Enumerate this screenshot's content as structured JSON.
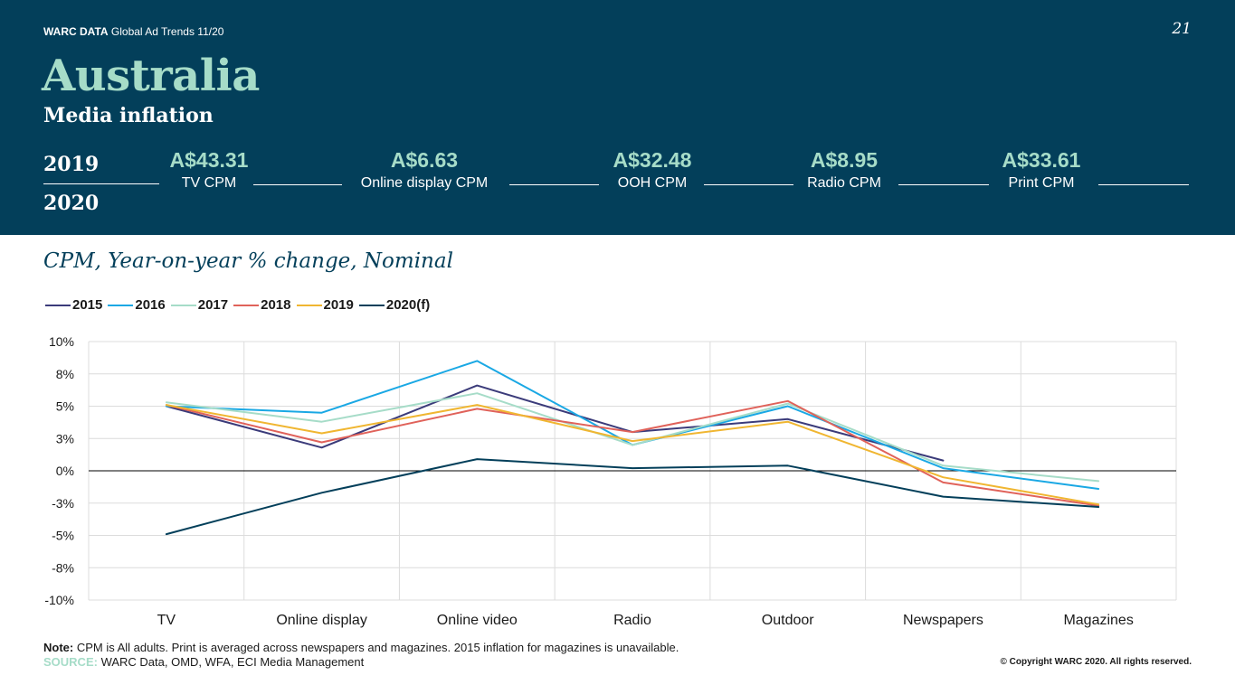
{
  "header": {
    "brand": "WARC DATA",
    "report": "Global Ad Trends 11/20",
    "page_number": "21",
    "country": "Australia",
    "section": "Media inflation",
    "year_top": "2019",
    "year_bottom": "2020"
  },
  "kpis": [
    {
      "value": "A$43.31",
      "label": "TV CPM"
    },
    {
      "value": "A$6.63",
      "label": "Online display CPM"
    },
    {
      "value": "A$32.48",
      "label": "OOH CPM"
    },
    {
      "value": "A$8.95",
      "label": "Radio CPM"
    },
    {
      "value": "A$33.61",
      "label": "Print CPM"
    }
  ],
  "chart_data": {
    "type": "line",
    "title": "CPM, Year-on-year % change, Nominal",
    "xlabel": "",
    "ylabel": "",
    "categories": [
      "TV",
      "Online display",
      "Online video",
      "Radio",
      "Outdoor",
      "Newspapers",
      "Magazines"
    ],
    "y_ticks": [
      "10%",
      "8%",
      "5%",
      "3%",
      "0%",
      "-3%",
      "-5%",
      "-8%",
      "-10%"
    ],
    "ylim": [
      -10,
      10
    ],
    "grid": true,
    "legend_position": "top-left",
    "zero_line": true,
    "series": [
      {
        "name": "2015",
        "color": "#3b3b7a",
        "values": [
          5.0,
          1.8,
          6.6,
          3.0,
          4.0,
          0.8,
          null
        ]
      },
      {
        "name": "2016",
        "color": "#1aa8e4",
        "values": [
          5.0,
          4.5,
          8.5,
          2.0,
          5.0,
          0.2,
          -1.4
        ]
      },
      {
        "name": "2017",
        "color": "#a6dcc8",
        "values": [
          5.3,
          3.8,
          6.0,
          2.0,
          5.2,
          0.4,
          -0.8
        ]
      },
      {
        "name": "2018",
        "color": "#e0625a",
        "values": [
          5.1,
          2.2,
          4.8,
          3.0,
          5.4,
          -0.9,
          -2.7
        ]
      },
      {
        "name": "2019",
        "color": "#f0b631",
        "values": [
          5.1,
          2.9,
          5.1,
          2.3,
          3.8,
          -0.5,
          -2.6
        ]
      },
      {
        "name": "2020(f)",
        "color": "#033f5a",
        "values": [
          -4.9,
          -1.7,
          0.9,
          0.2,
          0.4,
          -2.0,
          -2.8
        ]
      }
    ]
  },
  "footer": {
    "note_label": "Note:",
    "note_text": " CPM is All adults. Print is averaged across newspapers and magazines. 2015 inflation for magazines is unavailable.",
    "source_label": "SOURCE:",
    "source_text": " WARC Data, OMD, WFA, ECI Media Management",
    "copyright": "© Copyright WARC 2020. All rights reserved."
  }
}
